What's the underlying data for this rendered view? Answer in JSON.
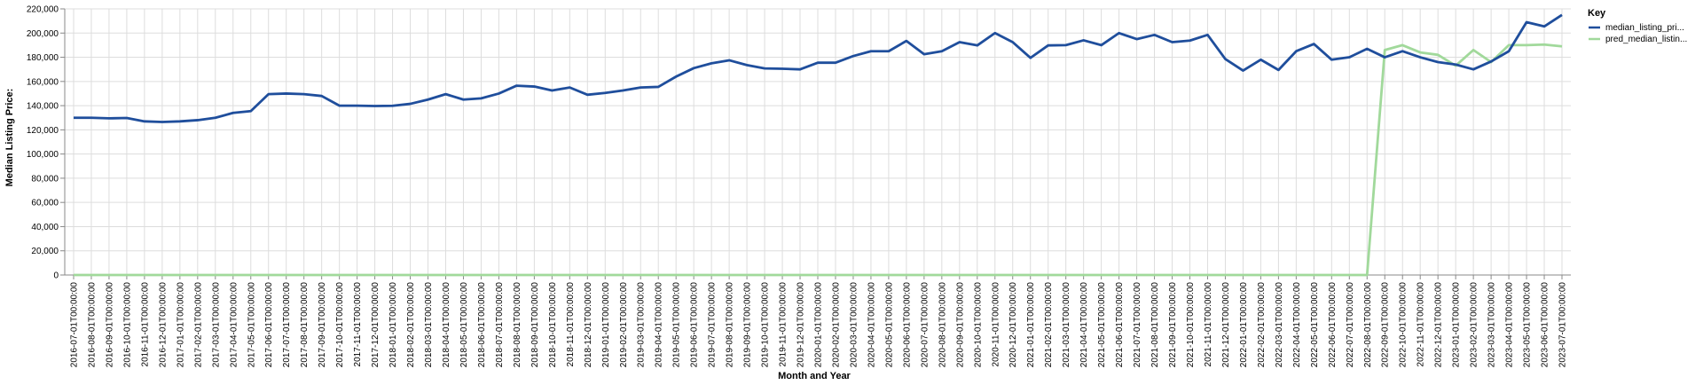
{
  "chart_data": {
    "type": "line",
    "xlabel": "Month and Year",
    "ylabel": "Median Listing Price:",
    "ylim": [
      0,
      220000
    ],
    "y_ticks": [
      0,
      20000,
      40000,
      60000,
      80000,
      100000,
      120000,
      140000,
      160000,
      180000,
      200000,
      220000
    ],
    "y_tick_labels": [
      "0",
      "20,000",
      "40,000",
      "60,000",
      "80,000",
      "100,000",
      "120,000",
      "140,000",
      "160,000",
      "180,000",
      "200,000",
      "220,000"
    ],
    "grid": true,
    "legend": {
      "title": "Key",
      "position": "right"
    },
    "x": [
      "2016-07-01T00:00:00",
      "2016-08-01T00:00:00",
      "2016-09-01T00:00:00",
      "2016-10-01T00:00:00",
      "2016-11-01T00:00:00",
      "2016-12-01T00:00:00",
      "2017-01-01T00:00:00",
      "2017-02-01T00:00:00",
      "2017-03-01T00:00:00",
      "2017-04-01T00:00:00",
      "2017-05-01T00:00:00",
      "2017-06-01T00:00:00",
      "2017-07-01T00:00:00",
      "2017-08-01T00:00:00",
      "2017-09-01T00:00:00",
      "2017-10-01T00:00:00",
      "2017-11-01T00:00:00",
      "2017-12-01T00:00:00",
      "2018-01-01T00:00:00",
      "2018-02-01T00:00:00",
      "2018-03-01T00:00:00",
      "2018-04-01T00:00:00",
      "2018-05-01T00:00:00",
      "2018-06-01T00:00:00",
      "2018-07-01T00:00:00",
      "2018-08-01T00:00:00",
      "2018-09-01T00:00:00",
      "2018-10-01T00:00:00",
      "2018-11-01T00:00:00",
      "2018-12-01T00:00:00",
      "2019-01-01T00:00:00",
      "2019-02-01T00:00:00",
      "2019-03-01T00:00:00",
      "2019-04-01T00:00:00",
      "2019-05-01T00:00:00",
      "2019-06-01T00:00:00",
      "2019-07-01T00:00:00",
      "2019-08-01T00:00:00",
      "2019-09-01T00:00:00",
      "2019-10-01T00:00:00",
      "2019-11-01T00:00:00",
      "2019-12-01T00:00:00",
      "2020-01-01T00:00:00",
      "2020-02-01T00:00:00",
      "2020-03-01T00:00:00",
      "2020-04-01T00:00:00",
      "2020-05-01T00:00:00",
      "2020-06-01T00:00:00",
      "2020-07-01T00:00:00",
      "2020-08-01T00:00:00",
      "2020-09-01T00:00:00",
      "2020-10-01T00:00:00",
      "2020-11-01T00:00:00",
      "2020-12-01T00:00:00",
      "2021-01-01T00:00:00",
      "2021-02-01T00:00:00",
      "2021-03-01T00:00:00",
      "2021-04-01T00:00:00",
      "2021-05-01T00:00:00",
      "2021-06-01T00:00:00",
      "2021-07-01T00:00:00",
      "2021-08-01T00:00:00",
      "2021-09-01T00:00:00",
      "2021-10-01T00:00:00",
      "2021-11-01T00:00:00",
      "2021-12-01T00:00:00",
      "2022-01-01T00:00:00",
      "2022-02-01T00:00:00",
      "2022-03-01T00:00:00",
      "2022-04-01T00:00:00",
      "2022-05-01T00:00:00",
      "2022-06-01T00:00:00",
      "2022-07-01T00:00:00",
      "2022-08-01T00:00:00",
      "2022-09-01T00:00:00",
      "2022-10-01T00:00:00",
      "2022-11-01T00:00:00",
      "2022-12-01T00:00:00",
      "2023-01-01T00:00:00",
      "2023-02-01T00:00:00",
      "2023-03-01T00:00:00",
      "2023-04-01T00:00:00",
      "2023-05-01T00:00:00",
      "2023-06-01T00:00:00",
      "2023-07-01T00:00:00"
    ],
    "series": [
      {
        "name": "median_listing_pri...",
        "color": "#1f4e9c",
        "values": [
          130000,
          130000,
          129500,
          129800,
          127000,
          126500,
          127000,
          128000,
          130000,
          134000,
          135500,
          149500,
          150000,
          149500,
          148000,
          140000,
          140000,
          139700,
          139900,
          141500,
          145000,
          149500,
          145000,
          146000,
          150000,
          156500,
          155800,
          152500,
          155000,
          149000,
          150500,
          152500,
          155000,
          155500,
          164000,
          171000,
          175000,
          177500,
          173500,
          170800,
          170500,
          170000,
          175500,
          175500,
          181000,
          185000,
          185000,
          193500,
          182500,
          185000,
          192500,
          189800,
          200000,
          192500,
          179500,
          189800,
          190000,
          194000,
          190000,
          200000,
          195000,
          198500,
          192500,
          193800,
          198500,
          178500,
          169000,
          178000,
          169500,
          185000,
          191000,
          178000,
          180000,
          187000,
          180000,
          185000,
          180000,
          176000,
          174000,
          170000,
          176500,
          185000,
          209000,
          205500,
          215000
        ]
      },
      {
        "name": "pred_median_listin...",
        "color": "#a1d99b",
        "values": [
          0,
          0,
          0,
          0,
          0,
          0,
          0,
          0,
          0,
          0,
          0,
          0,
          0,
          0,
          0,
          0,
          0,
          0,
          0,
          0,
          0,
          0,
          0,
          0,
          0,
          0,
          0,
          0,
          0,
          0,
          0,
          0,
          0,
          0,
          0,
          0,
          0,
          0,
          0,
          0,
          0,
          0,
          0,
          0,
          0,
          0,
          0,
          0,
          0,
          0,
          0,
          0,
          0,
          0,
          0,
          0,
          0,
          0,
          0,
          0,
          0,
          0,
          0,
          0,
          0,
          0,
          0,
          0,
          0,
          0,
          0,
          0,
          0,
          0,
          186000,
          190000,
          184000,
          182000,
          173000,
          186000,
          176000,
          190000,
          190000,
          190500,
          189000
        ]
      }
    ]
  }
}
